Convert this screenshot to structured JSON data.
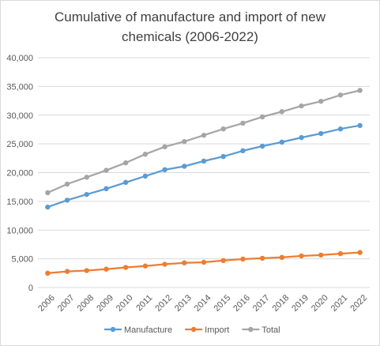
{
  "chart_data": {
    "type": "line",
    "title": "Cumulative of manufacture and import of new chemicals (2006-2022)",
    "xlabel": "",
    "ylabel": "",
    "categories": [
      "2006",
      "2007",
      "2008",
      "2009",
      "2010",
      "2011",
      "2012",
      "2013",
      "2014",
      "2015",
      "2016",
      "2017",
      "2018",
      "2019",
      "2020",
      "2021",
      "2022"
    ],
    "ylim": [
      0,
      40000
    ],
    "yticks": [
      0,
      5000,
      10000,
      15000,
      20000,
      25000,
      30000,
      35000,
      40000
    ],
    "ytick_labels": [
      "0",
      "5,000",
      "10,000",
      "15,000",
      "20,000",
      "25,000",
      "30,000",
      "35,000",
      "40,000"
    ],
    "grid": true,
    "legend_position": "bottom",
    "series": [
      {
        "name": "Manufacture",
        "color": "#5b9bd5",
        "values": [
          14000,
          15200,
          16200,
          17200,
          18300,
          19400,
          20500,
          21100,
          22000,
          22800,
          23800,
          24600,
          25300,
          26100,
          26800,
          27600,
          28200
        ]
      },
      {
        "name": "Import",
        "color": "#ed7d31",
        "values": [
          2500,
          2800,
          2950,
          3200,
          3500,
          3750,
          4050,
          4300,
          4400,
          4700,
          4950,
          5100,
          5250,
          5500,
          5650,
          5900,
          6100
        ]
      },
      {
        "name": "Total",
        "color": "#a5a5a5",
        "values": [
          16500,
          18000,
          19200,
          20400,
          21700,
          23200,
          24500,
          25400,
          26500,
          27600,
          28600,
          29700,
          30600,
          31600,
          32400,
          33500,
          34300
        ]
      }
    ]
  }
}
